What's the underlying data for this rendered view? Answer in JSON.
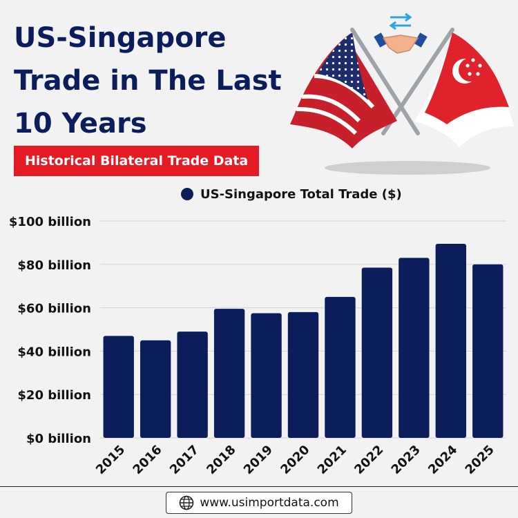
{
  "title_lines": [
    "US-Singapore",
    "Trade in The Last",
    "10 Years"
  ],
  "subtitle": "Historical Bilateral Trade Data",
  "website": "www.usimportdata.com",
  "colors": {
    "navy": "#0b1d5a",
    "red": "#e51a24",
    "bar": "#0b1d5a",
    "background": "#f2f2f2"
  },
  "icons": {
    "flags": "us-singapore-flags-icon",
    "handshake": "handshake-icon",
    "globe": "globe-icon"
  },
  "chart_data": {
    "type": "bar",
    "categories": [
      "2015",
      "2016",
      "2017",
      "2018",
      "2019",
      "2020",
      "2021",
      "2022",
      "2023",
      "2024",
      "2025"
    ],
    "series": [
      {
        "name": "US-Singapore Total Trade ($)",
        "values": [
          47,
          45,
          49,
          59.5,
          57.5,
          58,
          65,
          78.5,
          83,
          89.5,
          80
        ]
      }
    ],
    "ylim": [
      0,
      100
    ],
    "yticks": [
      0,
      20,
      40,
      60,
      80,
      100
    ],
    "ytick_labels": [
      "$0 billion",
      "$20 billion",
      "$40 billion",
      "$60 billion",
      "$80 billion",
      "$100 billion"
    ],
    "xlabel": "",
    "ylabel": "",
    "grid": true,
    "legend_position": "top"
  }
}
